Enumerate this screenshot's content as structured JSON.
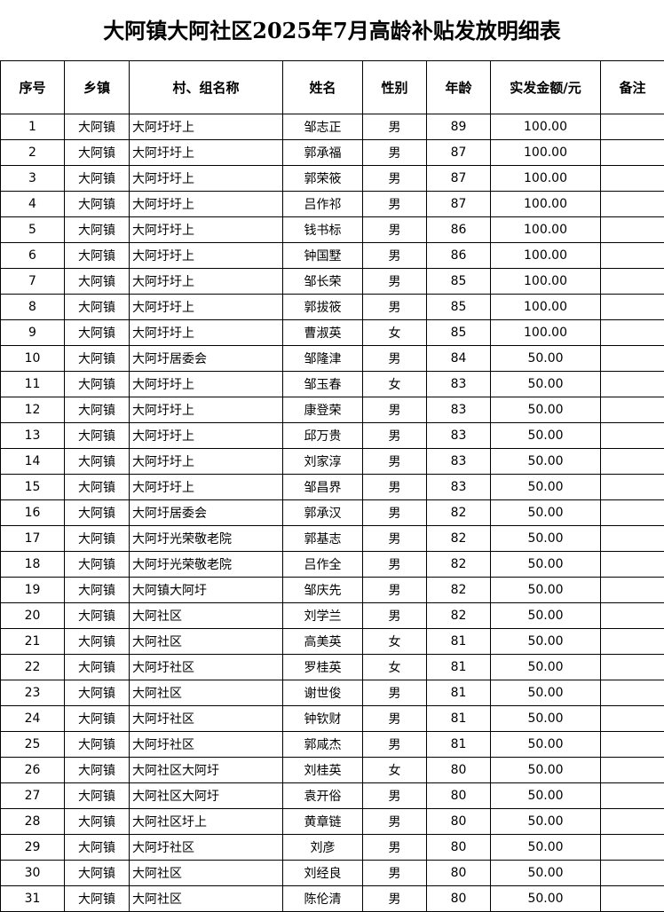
{
  "title": "大阿镇大阿社区2025年7月高龄补贴发放明细表",
  "columns": [
    "序号",
    "乡镇",
    "村、组名称",
    "姓名",
    "性别",
    "年龄",
    "实发金额/元",
    "备注"
  ],
  "rows": [
    [
      "1",
      "大阿镇",
      "大阿圩圩上",
      "邹志正",
      "男",
      "89",
      "100.00",
      ""
    ],
    [
      "2",
      "大阿镇",
      "大阿圩圩上",
      "郭承福",
      "男",
      "87",
      "100.00",
      ""
    ],
    [
      "3",
      "大阿镇",
      "大阿圩圩上",
      "郭荣筱",
      "男",
      "87",
      "100.00",
      ""
    ],
    [
      "4",
      "大阿镇",
      "大阿圩圩上",
      "吕作祁",
      "男",
      "87",
      "100.00",
      ""
    ],
    [
      "5",
      "大阿镇",
      "大阿圩圩上",
      "钱书标",
      "男",
      "86",
      "100.00",
      ""
    ],
    [
      "6",
      "大阿镇",
      "大阿圩圩上",
      "钟国墅",
      "男",
      "86",
      "100.00",
      ""
    ],
    [
      "7",
      "大阿镇",
      "大阿圩圩上",
      "邹长荣",
      "男",
      "85",
      "100.00",
      ""
    ],
    [
      "8",
      "大阿镇",
      "大阿圩圩上",
      "郭拔筱",
      "男",
      "85",
      "100.00",
      ""
    ],
    [
      "9",
      "大阿镇",
      "大阿圩圩上",
      "曹淑英",
      "女",
      "85",
      "100.00",
      ""
    ],
    [
      "10",
      "大阿镇",
      "大阿圩居委会",
      "邹隆津",
      "男",
      "84",
      "50.00",
      ""
    ],
    [
      "11",
      "大阿镇",
      "大阿圩圩上",
      "邹玉春",
      "女",
      "83",
      "50.00",
      ""
    ],
    [
      "12",
      "大阿镇",
      "大阿圩圩上",
      "康登荣",
      "男",
      "83",
      "50.00",
      ""
    ],
    [
      "13",
      "大阿镇",
      "大阿圩圩上",
      "邱万贵",
      "男",
      "83",
      "50.00",
      ""
    ],
    [
      "14",
      "大阿镇",
      "大阿圩圩上",
      "刘家淳",
      "男",
      "83",
      "50.00",
      ""
    ],
    [
      "15",
      "大阿镇",
      "大阿圩圩上",
      "邹昌界",
      "男",
      "83",
      "50.00",
      ""
    ],
    [
      "16",
      "大阿镇",
      "大阿圩居委会",
      "郭承汉",
      "男",
      "82",
      "50.00",
      ""
    ],
    [
      "17",
      "大阿镇",
      "大阿圩光荣敬老院",
      "郭基志",
      "男",
      "82",
      "50.00",
      ""
    ],
    [
      "18",
      "大阿镇",
      "大阿圩光荣敬老院",
      "吕作全",
      "男",
      "82",
      "50.00",
      ""
    ],
    [
      "19",
      "大阿镇",
      "大阿镇大阿圩",
      "邹庆先",
      "男",
      "82",
      "50.00",
      ""
    ],
    [
      "20",
      "大阿镇",
      "大阿社区",
      "刘学兰",
      "男",
      "82",
      "50.00",
      ""
    ],
    [
      "21",
      "大阿镇",
      "大阿社区",
      "高美英",
      "女",
      "81",
      "50.00",
      ""
    ],
    [
      "22",
      "大阿镇",
      "大阿圩社区",
      "罗桂英",
      "女",
      "81",
      "50.00",
      ""
    ],
    [
      "23",
      "大阿镇",
      "大阿社区",
      "谢世俊",
      "男",
      "81",
      "50.00",
      ""
    ],
    [
      "24",
      "大阿镇",
      "大阿圩社区",
      "钟钦财",
      "男",
      "81",
      "50.00",
      ""
    ],
    [
      "25",
      "大阿镇",
      "大阿圩社区",
      "郭咸杰",
      "男",
      "81",
      "50.00",
      ""
    ],
    [
      "26",
      "大阿镇",
      "大阿社区大阿圩",
      "刘桂英",
      "女",
      "80",
      "50.00",
      ""
    ],
    [
      "27",
      "大阿镇",
      "大阿社区大阿圩",
      "袁开俗",
      "男",
      "80",
      "50.00",
      ""
    ],
    [
      "28",
      "大阿镇",
      "大阿社区圩上",
      "黄章链",
      "男",
      "80",
      "50.00",
      ""
    ],
    [
      "29",
      "大阿镇",
      "大阿圩社区",
      "刘彦",
      "男",
      "80",
      "50.00",
      ""
    ],
    [
      "30",
      "大阿镇",
      "大阿社区",
      "刘经良",
      "男",
      "80",
      "50.00",
      ""
    ],
    [
      "31",
      "大阿镇",
      "大阿社区",
      "陈伦清",
      "男",
      "80",
      "50.00",
      ""
    ]
  ]
}
